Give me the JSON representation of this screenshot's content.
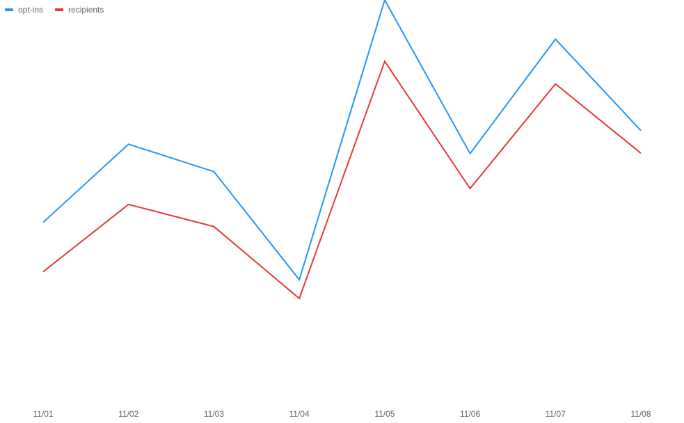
{
  "chart_data": {
    "type": "line",
    "title": "",
    "xlabel": "",
    "ylabel": "",
    "categories": [
      "11/01",
      "11/02",
      "11/03",
      "11/04",
      "11/05",
      "11/06",
      "11/07",
      "11/08"
    ],
    "series": [
      {
        "name": "opt-ins",
        "color": "#2196f3",
        "values": [
          40.9,
          61.7,
          54.4,
          25.7,
          100,
          59.2,
          89.6,
          65.3
        ]
      },
      {
        "name": "recipients",
        "color": "#e53935",
        "values": [
          27.8,
          45.7,
          39.8,
          20.7,
          83.7,
          49.9,
          77.7,
          59.3
        ]
      }
    ],
    "ylim": [
      0,
      100
    ],
    "grid": false,
    "legend_position": "top-left"
  }
}
